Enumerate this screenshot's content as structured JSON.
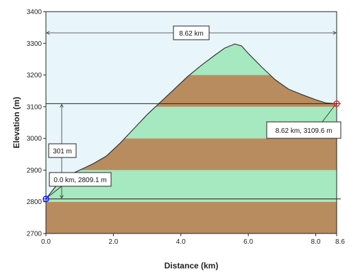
{
  "chart_data": {
    "type": "area",
    "xlabel": "Distance  (km)",
    "ylabel": "Elevation  (m)",
    "xlim": [
      0,
      8.62
    ],
    "ylim": [
      2700,
      3400
    ],
    "x_ticks": [
      0,
      2,
      4,
      6,
      8,
      8.62
    ],
    "x_tick_labels": [
      "0.0",
      "2.0",
      "4.0",
      "6.0",
      "8.0",
      "8.6"
    ],
    "y_ticks": [
      2700,
      2800,
      2900,
      3000,
      3100,
      3200,
      3300,
      3400
    ],
    "y_tick_labels": [
      "2700",
      "2800",
      "2900",
      "3000",
      "3100",
      "3200",
      "3300",
      "3400"
    ],
    "band_colors": {
      "brown": "#b88c5f",
      "green": "#a6e8bf",
      "plot_bg": "#e8f5fa"
    },
    "profile": {
      "x": [
        0,
        0.3,
        0.6,
        1.0,
        1.4,
        1.8,
        2.2,
        2.6,
        3.0,
        3.4,
        3.8,
        4.2,
        4.6,
        5.0,
        5.3,
        5.6,
        5.8,
        6.0,
        6.4,
        6.8,
        7.2,
        7.6,
        8.0,
        8.3,
        8.62
      ],
      "y": [
        2809.1,
        2850,
        2880,
        2900,
        2920,
        2945,
        2985,
        3030,
        3075,
        3115,
        3155,
        3195,
        3230,
        3262,
        3285,
        3298,
        3292,
        3268,
        3225,
        3185,
        3155,
        3138,
        3122,
        3112,
        3109.6
      ]
    },
    "annotations": {
      "total_distance": "8.62 km",
      "elevation_gain": "301 m",
      "start_point": "0.0 km, 2809.1 m",
      "end_point": "8.62 km, 3109.6 m"
    },
    "markers": {
      "start": {
        "x": 0,
        "y": 2809.1,
        "color": "#1a1aff"
      },
      "end": {
        "x": 8.62,
        "y": 3109.6,
        "color": "#ff2020"
      }
    }
  }
}
